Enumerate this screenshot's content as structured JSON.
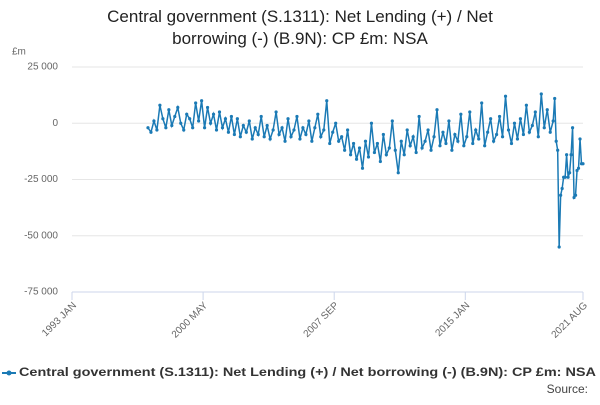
{
  "chart_data": {
    "type": "line",
    "title": "Central government (S.1311): Net Lending (+) / Net borrowing (-) (B.9N): CP £m: NSA",
    "y_unit": "£m",
    "source": "Source:",
    "color": "#1b7ab5",
    "grid": true,
    "xlim": [
      "1993 JAN",
      "2021 AUG"
    ],
    "xticks": [
      "1993 JAN",
      "2000 MAY",
      "2007 SEP",
      "2015 JAN",
      "2021 AUG"
    ],
    "ylim": [
      -75000,
      25000
    ],
    "yticks": [
      {
        "value": 25000,
        "label": "25 000"
      },
      0,
      {
        "value": -25000,
        "label": "-25 000"
      },
      {
        "value": -50000,
        "label": "-50 000"
      },
      {
        "value": -75000,
        "label": "-75 000"
      }
    ],
    "x": [
      "1997 APR",
      "1997 JUN",
      "1997 AUG",
      "1997 OCT",
      "1997 DEC",
      "1998 FEB",
      "1998 APR",
      "1998 JUN",
      "1998 AUG",
      "1998 OCT",
      "1998 DEC",
      "1999 FEB",
      "1999 APR",
      "1999 JUN",
      "1999 AUG",
      "1999 OCT",
      "1999 DEC",
      "2000 FEB",
      "2000 APR",
      "2000 JUN",
      "2000 AUG",
      "2000 OCT",
      "2000 DEC",
      "2001 FEB",
      "2001 APR",
      "2001 JUN",
      "2001 AUG",
      "2001 OCT",
      "2001 DEC",
      "2002 FEB",
      "2002 APR",
      "2002 JUN",
      "2002 AUG",
      "2002 OCT",
      "2002 DEC",
      "2003 FEB",
      "2003 APR",
      "2003 JUN",
      "2003 AUG",
      "2003 OCT",
      "2003 DEC",
      "2004 FEB",
      "2004 APR",
      "2004 JUN",
      "2004 AUG",
      "2004 OCT",
      "2004 DEC",
      "2005 FEB",
      "2005 APR",
      "2005 JUN",
      "2005 AUG",
      "2005 OCT",
      "2005 DEC",
      "2006 FEB",
      "2006 APR",
      "2006 JUN",
      "2006 AUG",
      "2006 OCT",
      "2006 DEC",
      "2007 FEB",
      "2007 APR",
      "2007 JUN",
      "2007 AUG",
      "2007 OCT",
      "2007 DEC",
      "2008 FEB",
      "2008 APR",
      "2008 JUN",
      "2008 AUG",
      "2008 OCT",
      "2008 DEC",
      "2009 FEB",
      "2009 APR",
      "2009 JUN",
      "2009 AUG",
      "2009 OCT",
      "2009 DEC",
      "2010 FEB",
      "2010 APR",
      "2010 JUN",
      "2010 AUG",
      "2010 OCT",
      "2010 DEC",
      "2011 FEB",
      "2011 APR",
      "2011 JUN",
      "2011 AUG",
      "2011 OCT",
      "2011 DEC",
      "2012 FEB",
      "2012 APR",
      "2012 JUN",
      "2012 AUG",
      "2012 OCT",
      "2012 DEC",
      "2013 FEB",
      "2013 APR",
      "2013 JUN",
      "2013 AUG",
      "2013 OCT",
      "2013 DEC",
      "2014 FEB",
      "2014 APR",
      "2014 JUN",
      "2014 AUG",
      "2014 OCT",
      "2014 DEC",
      "2015 FEB",
      "2015 APR",
      "2015 JUN",
      "2015 AUG",
      "2015 OCT",
      "2015 DEC",
      "2016 FEB",
      "2016 APR",
      "2016 JUN",
      "2016 AUG",
      "2016 OCT",
      "2016 DEC",
      "2017 FEB",
      "2017 APR",
      "2017 JUN",
      "2017 AUG",
      "2017 OCT",
      "2017 DEC",
      "2018 FEB",
      "2018 APR",
      "2018 JUN",
      "2018 AUG",
      "2018 OCT",
      "2018 DEC",
      "2019 FEB",
      "2019 APR",
      "2019 JUN",
      "2019 AUG",
      "2019 OCT",
      "2019 DEC",
      "2020 JAN",
      "2020 FEB",
      "2020 MAR",
      "2020 APR",
      "2020 MAY",
      "2020 JUN",
      "2020 JUL",
      "2020 AUG",
      "2020 SEP",
      "2020 OCT",
      "2020 NOV",
      "2020 DEC",
      "2021 JAN",
      "2021 FEB",
      "2021 MAR",
      "2021 APR",
      "2021 MAY",
      "2021 JUN",
      "2021 JUL",
      "2021 AUG"
    ],
    "series": [
      {
        "name": "Central government (S.1311): Net Lending (+) / Net borrowing (-) (B.9N): CP £m: NSA",
        "values": [
          -2000,
          -4000,
          1000,
          -3000,
          8000,
          2000,
          -2000,
          6000,
          -1000,
          3000,
          7000,
          0,
          -3000,
          4000,
          2000,
          -2000,
          9000,
          1000,
          10000,
          -2000,
          7000,
          0,
          4000,
          -3000,
          5000,
          -2000,
          2000,
          -4000,
          3000,
          -5000,
          2000,
          -6000,
          -1000,
          -4000,
          1000,
          -7000,
          -2000,
          -5000,
          3000,
          -6000,
          -1000,
          -7000,
          -3000,
          5000,
          -5000,
          -2000,
          -8000,
          2000,
          -6000,
          -3000,
          3000,
          -7000,
          -2000,
          -5000,
          1000,
          -8000,
          -2000,
          4000,
          -6000,
          -3000,
          10000,
          -9000,
          -4000,
          0,
          -8000,
          -6000,
          -12000,
          -3000,
          -14000,
          -9000,
          -16000,
          -11000,
          -20000,
          -8000,
          -15000,
          0,
          -13000,
          -9000,
          -17000,
          -5000,
          -14000,
          -11000,
          1000,
          -12000,
          -22000,
          -8000,
          -14000,
          -3000,
          -10000,
          -6000,
          -13000,
          3000,
          -11000,
          -8000,
          -3000,
          -12000,
          -6000,
          6000,
          -10000,
          -4000,
          -9000,
          1000,
          -12000,
          -5000,
          -8000,
          4000,
          -10000,
          -6000,
          5000,
          -9000,
          -3000,
          -7000,
          9000,
          -10000,
          -4000,
          2000,
          -8000,
          -5000,
          3000,
          -6000,
          12000,
          -3000,
          -9000,
          0,
          -7000,
          2000,
          -5000,
          8000,
          -4000,
          -1000,
          5000,
          -6000,
          13000,
          -2000,
          6000,
          -4000,
          1000,
          11000,
          -8000,
          -12000,
          -55000,
          -32000,
          -29000,
          -24000,
          -24000,
          -14000,
          -24000,
          -22000,
          -14000,
          -2000,
          -33000,
          -32000,
          -21000,
          -20000,
          -7000,
          -18000,
          -18000
        ]
      }
    ]
  }
}
